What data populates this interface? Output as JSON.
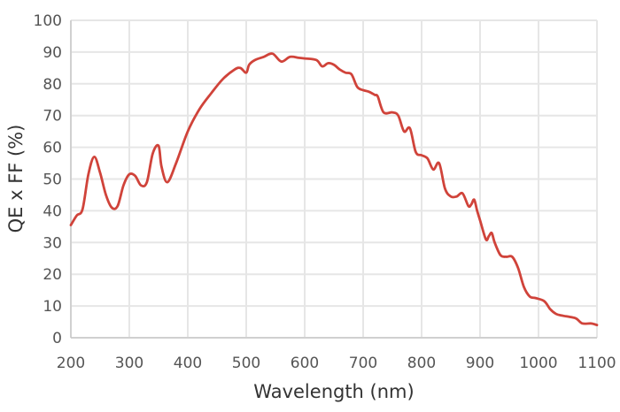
{
  "chart_data": {
    "type": "line",
    "xlabel": "Wavelength (nm)",
    "ylabel": "QE x FF (%)",
    "xlim": [
      200,
      1100
    ],
    "ylim": [
      0,
      100
    ],
    "x_ticks": [
      200,
      300,
      400,
      500,
      600,
      700,
      800,
      900,
      1000,
      1100
    ],
    "y_ticks": [
      0,
      10,
      20,
      30,
      40,
      50,
      60,
      70,
      80,
      90,
      100
    ],
    "grid": true,
    "line_color": "#d0433a",
    "series": [
      {
        "x": [
          200,
          210,
          220,
          230,
          240,
          250,
          260,
          270,
          280,
          290,
          300,
          310,
          320,
          330,
          340,
          350,
          355,
          365,
          380,
          400,
          420,
          440,
          460,
          480,
          490,
          500,
          505,
          515,
          530,
          545,
          560,
          575,
          590,
          600,
          620,
          630,
          640,
          650,
          660,
          670,
          680,
          690,
          700,
          710,
          720,
          725,
          735,
          750,
          760,
          770,
          780,
          790,
          800,
          810,
          820,
          830,
          840,
          850,
          860,
          870,
          880,
          885,
          890,
          895,
          900,
          910,
          915,
          920,
          925,
          935,
          945,
          955,
          965,
          975,
          985,
          995,
          1010,
          1020,
          1030,
          1040,
          1055,
          1065,
          1075,
          1090,
          1100
        ],
        "values": [
          35.5,
          38.5,
          40.5,
          51.5,
          57,
          52,
          45,
          41,
          41.5,
          48,
          51.5,
          51,
          48,
          49,
          58,
          60.5,
          54,
          49,
          55,
          65,
          72,
          77,
          81.5,
          84.5,
          85,
          83.5,
          86,
          87.5,
          88.5,
          89.5,
          87,
          88.5,
          88.2,
          88,
          87.5,
          85.5,
          86.5,
          86,
          84.5,
          83.5,
          83,
          79,
          78,
          77.5,
          76.5,
          76,
          71,
          71,
          70,
          65,
          66,
          58.5,
          57.5,
          56.5,
          53,
          55,
          47,
          44.5,
          44.5,
          45.5,
          41.5,
          42,
          43.5,
          40,
          37,
          31,
          32,
          33,
          30,
          26,
          25.5,
          25.5,
          22,
          16,
          13,
          12.5,
          11.5,
          9,
          7.5,
          7,
          6.5,
          6,
          4.5,
          4.5,
          4
        ]
      }
    ]
  }
}
